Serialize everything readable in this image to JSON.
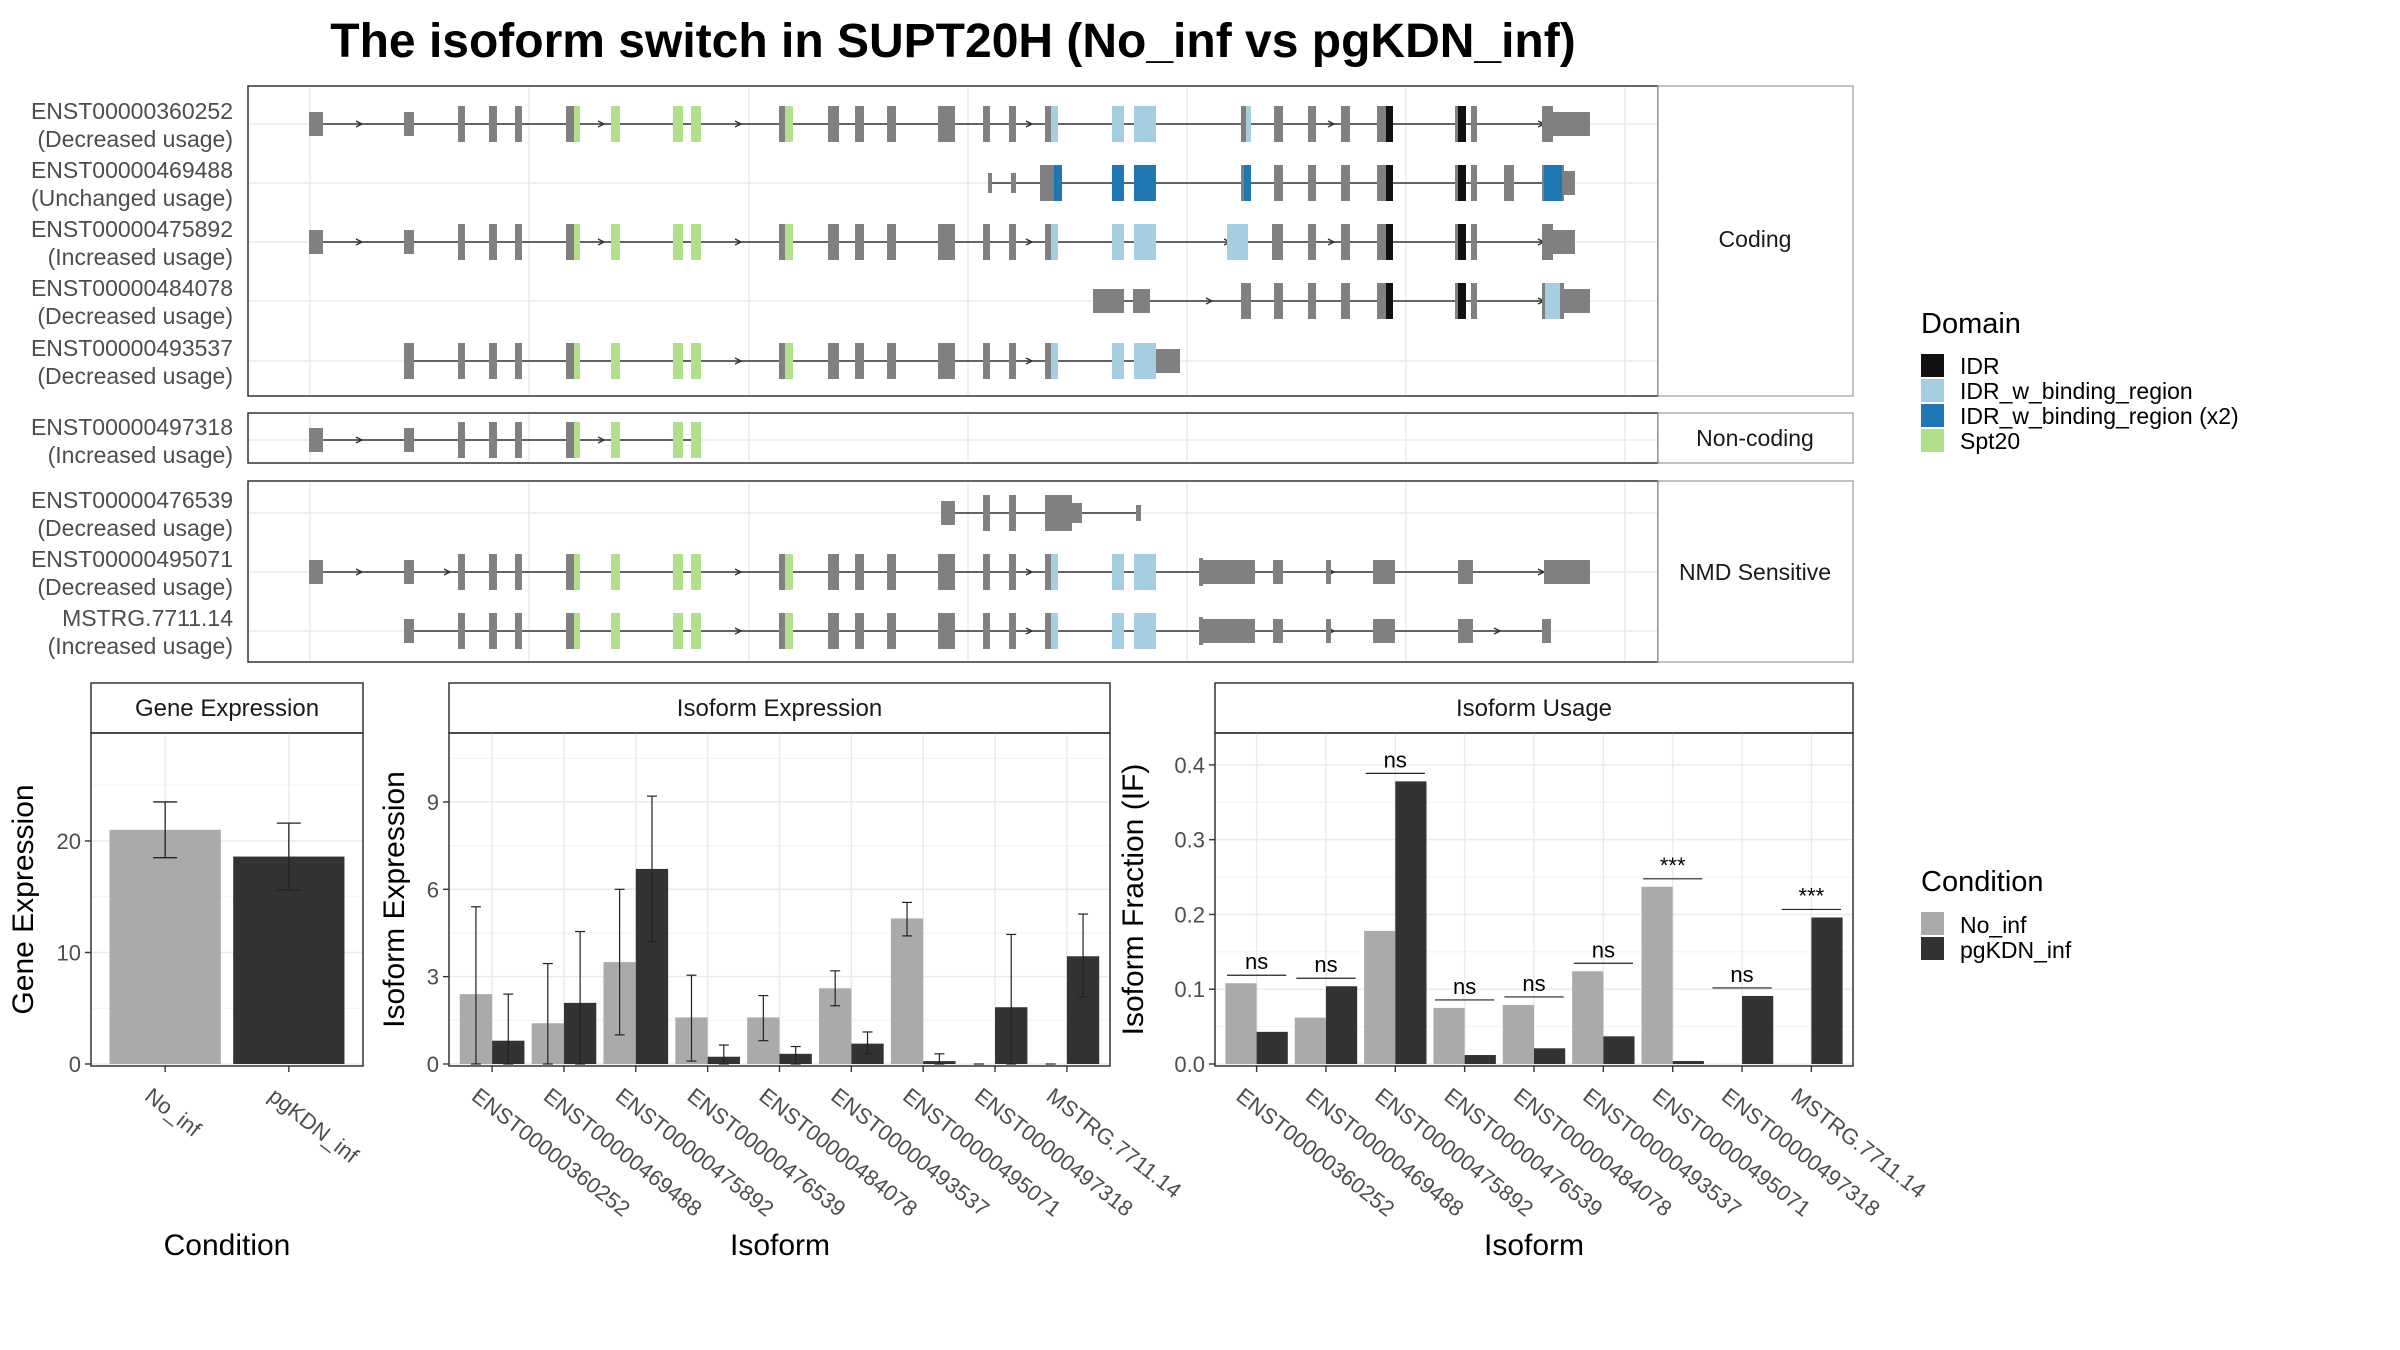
{
  "title": "The isoform switch in SUPT20H (No_inf vs pgKDN_inf)",
  "colors": {
    "no_inf": "#AAAAAA",
    "pgkdn_inf": "#333333",
    "exon": "#808080",
    "domain_IDR": "#111111",
    "domain_IDR_w_binding_region": "#A6CEE3",
    "domain_IDR_w_binding_region_x2": "#1F78B4",
    "domain_Spt20": "#B2DF8A",
    "panel_border": "#333333",
    "strip_fill": "#FFFFFF",
    "grid": "#EBEBEB"
  },
  "structure_panel": {
    "groups": [
      {
        "label": "Coding",
        "transcripts": [
          {
            "id": "ENST00000360252",
            "usage": "(Decreased usage)"
          },
          {
            "id": "ENST00000469488",
            "usage": "(Unchanged usage)"
          },
          {
            "id": "ENST00000475892",
            "usage": "(Increased usage)"
          },
          {
            "id": "ENST00000484078",
            "usage": "(Decreased usage)"
          },
          {
            "id": "ENST00000493537",
            "usage": "(Decreased usage)"
          }
        ]
      },
      {
        "label": "Non-coding",
        "transcripts": [
          {
            "id": "ENST00000497318",
            "usage": "(Increased usage)"
          }
        ]
      },
      {
        "label": "NMD Sensitive",
        "transcripts": [
          {
            "id": "ENST00000476539",
            "usage": "(Decreased usage)"
          },
          {
            "id": "ENST00000495071",
            "usage": "(Decreased usage)"
          },
          {
            "id": "MSTRG.7711.14",
            "usage": "(Increased usage)"
          }
        ]
      }
    ]
  },
  "domain_legend": {
    "title": "Domain",
    "items": [
      {
        "label": "IDR",
        "color": "#111111"
      },
      {
        "label": "IDR_w_binding_region",
        "color": "#A6CEE3"
      },
      {
        "label": "IDR_w_binding_region (x2)",
        "color": "#1F78B4"
      },
      {
        "label": "Spt20",
        "color": "#B2DF8A"
      }
    ]
  },
  "condition_legend": {
    "title": "Condition",
    "items": [
      {
        "label": "No_inf",
        "color": "#AAAAAA"
      },
      {
        "label": "pgKDN_inf",
        "color": "#333333"
      }
    ]
  },
  "chart_data": [
    {
      "type": "bar",
      "title": "Gene Expression",
      "xlabel": "Condition",
      "ylabel": "Gene Expression",
      "categories": [
        "No_inf",
        "pgKDN_inf"
      ],
      "values": [
        21.0,
        18.6
      ],
      "errors": [
        [
          18.5,
          23.5
        ],
        [
          15.6,
          21.6
        ]
      ],
      "ylim": [
        0,
        29.5
      ],
      "yticks": [
        0,
        10,
        20
      ]
    },
    {
      "type": "bar",
      "title": "Isoform Expression",
      "xlabel": "Isoform",
      "ylabel": "Isoform Expression",
      "categories": [
        "ENST00000360252",
        "ENST00000469488",
        "ENST00000475892",
        "ENST00000476539",
        "ENST00000484078",
        "ENST00000493537",
        "ENST00000495071",
        "ENST00000497318",
        "MSTRG.7711.14"
      ],
      "series": [
        {
          "name": "No_inf",
          "values": [
            2.4,
            1.4,
            3.5,
            1.6,
            1.6,
            2.6,
            5.0,
            0.0,
            0.0
          ],
          "errors": [
            [
              0.0,
              5.4
            ],
            [
              0.0,
              3.45
            ],
            [
              1.0,
              6.0
            ],
            [
              0.1,
              3.05
            ],
            [
              0.8,
              2.35
            ],
            [
              2.0,
              3.2
            ],
            [
              4.4,
              5.55
            ],
            [
              0.0,
              0.0
            ],
            [
              0.0,
              0.0
            ]
          ]
        },
        {
          "name": "pgKDN_inf",
          "values": [
            0.8,
            2.1,
            6.7,
            0.25,
            0.35,
            0.7,
            0.1,
            1.95,
            3.7
          ],
          "errors": [
            [
              0.0,
              2.4
            ],
            [
              0.0,
              4.55
            ],
            [
              4.2,
              9.2
            ],
            [
              0.0,
              0.65
            ],
            [
              0.0,
              0.6
            ],
            [
              0.35,
              1.1
            ],
            [
              0.0,
              0.35
            ],
            [
              0.0,
              4.45
            ],
            [
              2.3,
              5.15
            ]
          ]
        }
      ],
      "ylim": [
        0,
        11.3
      ],
      "yticks": [
        0,
        3,
        6,
        9
      ]
    },
    {
      "type": "bar",
      "title": "Isoform Usage",
      "xlabel": "Isoform",
      "ylabel": "Isoform Fraction (IF)",
      "categories": [
        "ENST00000360252",
        "ENST00000469488",
        "ENST00000475892",
        "ENST00000476539",
        "ENST00000484078",
        "ENST00000493537",
        "ENST00000495071",
        "ENST00000497318",
        "MSTRG.7711.14"
      ],
      "series": [
        {
          "name": "No_inf",
          "values": [
            0.108,
            0.062,
            0.178,
            0.075,
            0.079,
            0.124,
            0.237,
            0.0,
            0.0
          ]
        },
        {
          "name": "pgKDN_inf",
          "values": [
            0.043,
            0.104,
            0.378,
            0.012,
            0.021,
            0.037,
            0.004,
            0.091,
            0.196
          ]
        }
      ],
      "significance": [
        "ns",
        "ns",
        "ns",
        "ns",
        "ns",
        "ns",
        "***",
        "ns",
        "***"
      ],
      "ylim": [
        0,
        0.44
      ],
      "yticks": [
        "0.0",
        "0.1",
        "0.2",
        "0.3",
        "0.4"
      ]
    }
  ]
}
